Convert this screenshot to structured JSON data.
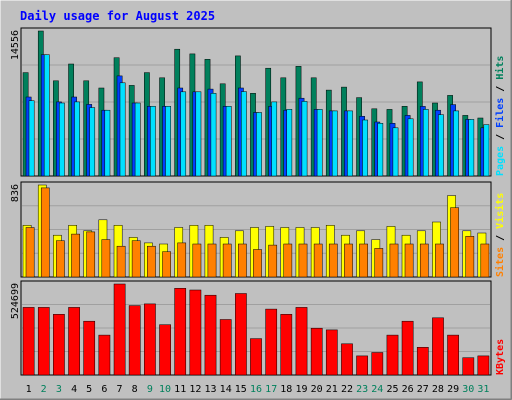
{
  "chart_data": {
    "type": "bar",
    "title": "Daily usage for August 2025",
    "colors": {
      "background": "#c0c0c0",
      "title": "#0000ff",
      "hits": "#00805c",
      "files": "#0040ff",
      "pages": "#00e0ff",
      "visits": "#ffff00",
      "sites": "#ff8000",
      "kbytes": "#ff0000",
      "weekday_label": "#000000",
      "weekend_label": "#00805c"
    },
    "days": [
      "1",
      "2",
      "3",
      "4",
      "5",
      "6",
      "7",
      "8",
      "9",
      "10",
      "11",
      "12",
      "13",
      "14",
      "15",
      "16",
      "17",
      "18",
      "19",
      "20",
      "21",
      "22",
      "23",
      "24",
      "25",
      "26",
      "27",
      "28",
      "29",
      "30",
      "31"
    ],
    "weekend_days": [
      "2",
      "3",
      "9",
      "10",
      "16",
      "17",
      "23",
      "24",
      "30",
      "31"
    ],
    "panels": [
      {
        "id": "hits",
        "max_label": "14556",
        "max": 14556,
        "legend": [
          {
            "key": "pages",
            "label": "Pages"
          },
          {
            "key": "sep",
            "label": " / "
          },
          {
            "key": "files",
            "label": "Files"
          },
          {
            "key": "sep",
            "label": " / "
          },
          {
            "key": "hits",
            "label": "Hits"
          }
        ],
        "series": [
          {
            "key": "hits",
            "values": [
              10380,
              14556,
              9560,
              11240,
              9560,
              8830,
              11880,
              9090,
              10380,
              9860,
              12730,
              12260,
              11720,
              9260,
              12060,
              8300,
              10820,
              9860,
              11010,
              9860,
              8620,
              8920,
              7870,
              6750,
              6690,
              7000,
              9450,
              7330,
              8090,
              6080,
              5820
            ]
          },
          {
            "key": "files",
            "values": [
              7930,
              12180,
              7440,
              7930,
              7190,
              6610,
              10050,
              7330,
              7000,
              7000,
              8830,
              8450,
              8720,
              7000,
              8830,
              6370,
              7000,
              6610,
              7810,
              6690,
              6540,
              6540,
              5990,
              5420,
              5290,
              6080,
              6990,
              6610,
              7170,
              5680,
              4840
            ]
          },
          {
            "key": "pages",
            "values": [
              7560,
              12180,
              7330,
              7440,
              6870,
              6610,
              9360,
              7330,
              7000,
              7000,
              8450,
              8450,
              8300,
              7000,
              8470,
              6370,
              7440,
              6700,
              7490,
              6690,
              6540,
              6540,
              5620,
              5290,
              4840,
              5740,
              6690,
              6150,
              6540,
              5680,
              5160
            ]
          }
        ]
      },
      {
        "id": "visits",
        "max_label": "836",
        "max": 836,
        "legend": [
          {
            "key": "sites",
            "label": "Sites"
          },
          {
            "key": "sep",
            "label": " / "
          },
          {
            "key": "visits",
            "label": "Visits"
          }
        ],
        "series": [
          {
            "key": "visits",
            "values": [
              470,
              836,
              380,
              470,
              420,
              520,
              470,
              360,
              310,
              300,
              450,
              470,
              470,
              360,
              420,
              450,
              460,
              450,
              450,
              450,
              470,
              380,
              420,
              340,
              460,
              380,
              420,
              500,
              740,
              420,
              400
            ]
          },
          {
            "key": "sites",
            "values": [
              450,
              810,
              330,
              390,
              410,
              340,
              280,
              330,
              280,
              230,
              310,
              300,
              300,
              300,
              300,
              250,
              290,
              300,
              300,
              300,
              300,
              300,
              300,
              260,
              300,
              300,
              300,
              300,
              630,
              370,
              300
            ]
          }
        ]
      },
      {
        "id": "kbytes",
        "max_label": "524699",
        "max": 524699,
        "legend": [
          {
            "key": "kbytes",
            "label": "KBytes"
          }
        ],
        "series": [
          {
            "key": "kbytes",
            "values": [
              390000,
              390000,
              350000,
              390000,
              310000,
              230000,
              524699,
              400000,
              410000,
              290000,
              500000,
              490000,
              460000,
              320000,
              470000,
              210000,
              380000,
              350000,
              390000,
              270000,
              260000,
              180000,
              110000,
              130000,
              230000,
              310000,
              160000,
              330000,
              230000,
              100000,
              110000
            ]
          }
        ]
      }
    ]
  }
}
